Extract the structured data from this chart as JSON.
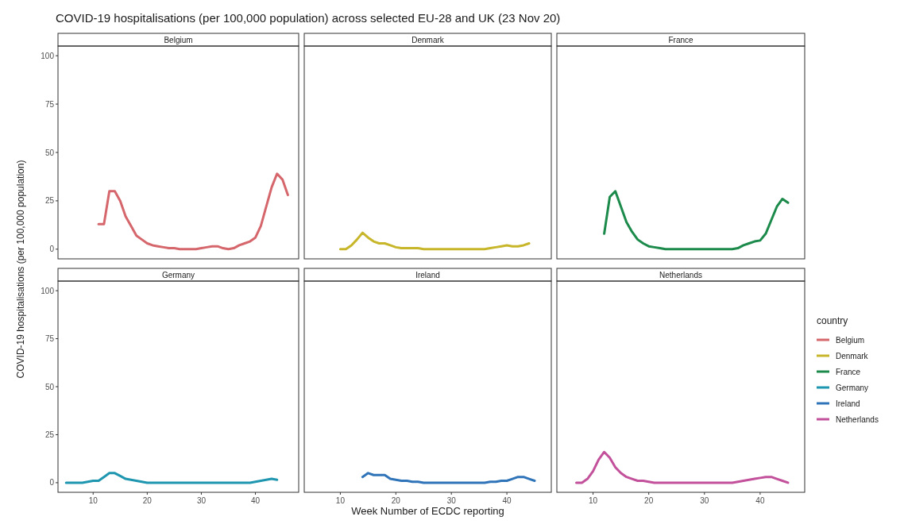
{
  "chart_data": [
    {
      "type": "line",
      "title": "Belgium",
      "annotations": [
        "COVID-19 hospitalisations (per 100,000 population) across selected EU-28 and UK (23 Nov 20)"
      ],
      "ylabel": "COVID-19 hospitalisations (per 100,000 population)",
      "xlim": [
        3.5,
        48
      ],
      "ylim": [
        -5,
        105
      ],
      "yticks": [
        0,
        25,
        50,
        75,
        100
      ],
      "tick_labels": "y",
      "grid": false,
      "legend": "right",
      "x": [
        11,
        12,
        13,
        14,
        15,
        16,
        17,
        18,
        19,
        20,
        21,
        22,
        23,
        24,
        25,
        26,
        27,
        28,
        29,
        30,
        31,
        32,
        33,
        34,
        35,
        36,
        37,
        38,
        39,
        40,
        41,
        42,
        43,
        44,
        45,
        46
      ],
      "series": [
        {
          "name": "Belgium",
          "color": "#d5666b",
          "values": [
            13,
            13,
            30,
            30,
            25,
            17,
            12,
            7,
            5,
            3,
            2,
            1.5,
            1,
            0.5,
            0.5,
            0,
            0,
            0,
            0,
            0.5,
            1,
            1.5,
            1.5,
            0.5,
            0,
            0.5,
            2,
            3,
            4,
            6,
            12,
            22,
            32,
            39,
            36,
            28
          ]
        }
      ]
    },
    {
      "type": "line",
      "title": "Denmark",
      "xlim": [
        3.5,
        48
      ],
      "ylim": [
        -5,
        105
      ],
      "tick_labels": false,
      "grid": false,
      "legend": "right",
      "x": [
        10,
        11,
        12,
        13,
        14,
        15,
        16,
        17,
        18,
        19,
        20,
        21,
        22,
        23,
        24,
        25,
        26,
        27,
        28,
        29,
        30,
        31,
        32,
        33,
        34,
        35,
        36,
        37,
        38,
        39,
        40,
        41,
        42,
        43,
        44
      ],
      "series": [
        {
          "name": "Denmark",
          "color": "#c8b62a",
          "values": [
            0,
            0,
            2,
            5,
            8.5,
            6,
            4,
            3,
            3,
            2,
            1,
            0.5,
            0.5,
            0.5,
            0.5,
            0,
            0,
            0,
            0,
            0,
            0,
            0,
            0,
            0,
            0,
            0,
            0,
            0.5,
            1,
            1.5,
            2,
            1.5,
            1.5,
            2,
            3
          ]
        }
      ]
    },
    {
      "type": "line",
      "title": "France",
      "legend_title": "country",
      "xlim": [
        3.5,
        48
      ],
      "ylim": [
        -5,
        105
      ],
      "tick_labels": false,
      "grid": false,
      "legend": "right",
      "x": [
        12,
        13,
        14,
        15,
        16,
        17,
        18,
        19,
        20,
        21,
        22,
        23,
        24,
        25,
        26,
        27,
        28,
        29,
        30,
        31,
        32,
        33,
        34,
        35,
        36,
        37,
        38,
        39,
        40,
        41,
        42,
        43,
        44,
        45
      ],
      "series": [
        {
          "name": "France",
          "color": "#1b8a4a",
          "values": [
            8,
            27,
            30,
            22,
            14,
            9,
            5,
            3,
            1.5,
            1,
            0.5,
            0,
            0,
            0,
            0,
            0,
            0,
            0,
            0,
            0,
            0,
            0,
            0,
            0,
            0.5,
            2,
            3,
            4,
            4.5,
            8,
            15,
            22,
            26,
            24
          ]
        }
      ]
    },
    {
      "type": "line",
      "title": "Germany",
      "xlim": [
        3.5,
        48
      ],
      "ylim": [
        -5,
        105
      ],
      "xticks": [
        10,
        20,
        30,
        40
      ],
      "yticks": [
        0,
        25,
        50,
        75,
        100
      ],
      "grid": false,
      "legend": "right",
      "x": [
        5,
        6,
        7,
        8,
        9,
        10,
        11,
        12,
        13,
        14,
        15,
        16,
        17,
        18,
        19,
        20,
        21,
        22,
        23,
        24,
        25,
        26,
        27,
        28,
        29,
        30,
        31,
        32,
        33,
        34,
        35,
        36,
        37,
        38,
        39,
        40,
        41,
        42,
        43,
        44
      ],
      "series": [
        {
          "name": "Germany",
          "color": "#1f96b0",
          "values": [
            0,
            0,
            0,
            0,
            0.5,
            1,
            1,
            3,
            5,
            5,
            3.5,
            2,
            1.5,
            1,
            0.5,
            0,
            0,
            0,
            0,
            0,
            0,
            0,
            0,
            0,
            0,
            0,
            0,
            0,
            0,
            0,
            0,
            0,
            0,
            0,
            0,
            0.5,
            1,
            1.5,
            2,
            1.5
          ]
        }
      ]
    },
    {
      "type": "line",
      "title": "Ireland",
      "xlabel": "Week Number of ECDC reporting",
      "xlim": [
        3.5,
        48
      ],
      "ylim": [
        -5,
        105
      ],
      "xticks": [
        10,
        20,
        30,
        40
      ],
      "tick_labels": "x",
      "grid": false,
      "legend": "right",
      "x": [
        14,
        15,
        16,
        17,
        18,
        19,
        20,
        21,
        22,
        23,
        24,
        25,
        26,
        27,
        28,
        29,
        30,
        31,
        32,
        33,
        34,
        35,
        36,
        37,
        38,
        39,
        40,
        41,
        42,
        43,
        44,
        45
      ],
      "series": [
        {
          "name": "Ireland",
          "color": "#2f74b8",
          "values": [
            3,
            5,
            4,
            4,
            4,
            2,
            1.5,
            1,
            1,
            0.5,
            0.5,
            0,
            0,
            0,
            0,
            0,
            0,
            0,
            0,
            0,
            0,
            0,
            0,
            0.5,
            0.5,
            1,
            1,
            2,
            3,
            3,
            2,
            1
          ]
        }
      ]
    },
    {
      "type": "line",
      "title": "Netherlands",
      "xlim": [
        3.5,
        48
      ],
      "ylim": [
        -5,
        105
      ],
      "xticks": [
        10,
        20,
        30,
        40
      ],
      "tick_labels": "x",
      "grid": false,
      "legend": "right",
      "x": [
        7,
        8,
        9,
        10,
        11,
        12,
        13,
        14,
        15,
        16,
        17,
        18,
        19,
        20,
        21,
        22,
        23,
        24,
        25,
        26,
        27,
        28,
        29,
        30,
        31,
        32,
        33,
        34,
        35,
        36,
        37,
        38,
        39,
        40,
        41,
        42,
        43,
        44,
        45
      ],
      "series": [
        {
          "name": "Netherlands",
          "color": "#c2509a",
          "values": [
            0,
            0,
            2,
            6,
            12,
            16,
            13,
            8,
            5,
            3,
            2,
            1,
            1,
            0.5,
            0,
            0,
            0,
            0,
            0,
            0,
            0,
            0,
            0,
            0,
            0,
            0,
            0,
            0,
            0,
            0.5,
            1,
            1.5,
            2,
            2.5,
            3,
            3,
            2,
            1,
            0
          ]
        }
      ]
    }
  ]
}
